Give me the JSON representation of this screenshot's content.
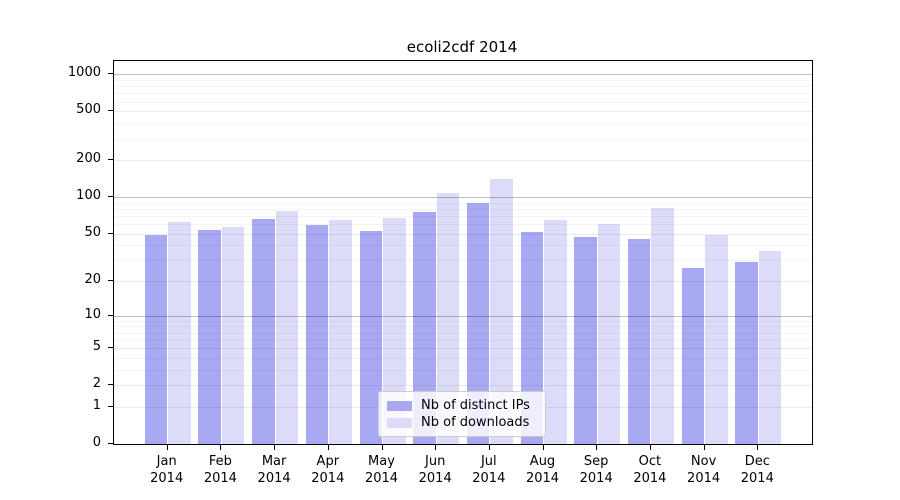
{
  "title": "ecoli2cdf 2014",
  "legend": {
    "ips_label": "Nb of distinct IPs",
    "downloads_label": "Nb of downloads"
  },
  "colors": {
    "ips": "#a9a9f3",
    "downloads": "#dcdcf9",
    "grid_major": "rgba(0,0,0,0.25)",
    "grid_labeled": "rgba(0,0,0,0.08)",
    "grid_minor": "rgba(0,0,0,0.045)"
  },
  "chart_data": {
    "type": "bar",
    "title": "ecoli2cdf 2014",
    "categories": [
      "Jan 2014",
      "Feb 2014",
      "Mar 2014",
      "Apr 2014",
      "May 2014",
      "Jun 2014",
      "Jul 2014",
      "Aug 2014",
      "Sep 2014",
      "Oct 2014",
      "Nov 2014",
      "Dec 2014"
    ],
    "x_tick_months": [
      "Jan",
      "Feb",
      "Mar",
      "Apr",
      "May",
      "Jun",
      "Jul",
      "Aug",
      "Sep",
      "Oct",
      "Nov",
      "Dec"
    ],
    "x_tick_year": "2014",
    "series": [
      {
        "name": "Nb of distinct IPs",
        "color": "#a9a9f3",
        "values": [
          49,
          54,
          66,
          59,
          53,
          75,
          90,
          52,
          47,
          45,
          26,
          29
        ]
      },
      {
        "name": "Nb of downloads",
        "color": "#dcdcf9",
        "values": [
          63,
          57,
          77,
          65,
          67,
          109,
          140,
          65,
          60,
          82,
          49,
          36
        ]
      }
    ],
    "yscale": "log1p",
    "ylabel": "",
    "xlabel": "",
    "yticks": [
      0,
      1,
      2,
      5,
      10,
      20,
      50,
      100,
      200,
      500,
      1000
    ],
    "yticks_emphasized": [
      10,
      100,
      1000
    ],
    "yticks_minor": [
      3,
      4,
      6,
      7,
      8,
      9,
      30,
      40,
      60,
      70,
      80,
      90,
      300,
      400,
      600,
      700,
      800,
      900
    ],
    "ylim": [
      0,
      1280
    ],
    "grid": "horizontal",
    "legend_position": "lower-center"
  }
}
